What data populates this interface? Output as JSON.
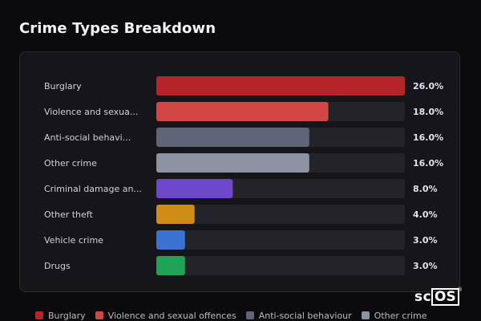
{
  "page": {
    "title": "Crime Types Breakdown"
  },
  "colors": {
    "background": "#0b0b0e",
    "panel": "#16161a",
    "track": "#232328",
    "label_text": "#cfd1d8",
    "value_text": "#e2e3e8"
  },
  "chart_data": {
    "type": "bar",
    "orientation": "horizontal",
    "categories": [
      "Burglary",
      "Violence and sexua...",
      "Anti-social behavi...",
      "Other crime",
      "Criminal damage an...",
      "Other theft",
      "Vehicle crime",
      "Drugs"
    ],
    "values": [
      26.0,
      18.0,
      16.0,
      16.0,
      8.0,
      4.0,
      3.0,
      3.0
    ],
    "value_labels": [
      "26.0%",
      "18.0%",
      "16.0%",
      "16.0%",
      "8.0%",
      "4.0%",
      "3.0%",
      "3.0%"
    ],
    "bar_colors": [
      "#b52428",
      "#d24646",
      "#5d6577",
      "#8c94a4",
      "#6d47cc",
      "#cf8c17",
      "#3a72d4",
      "#20a357"
    ],
    "xlim": [
      0,
      26.0
    ],
    "grid": false,
    "legend_position": "bottom"
  },
  "legend": [
    {
      "label": "Burglary",
      "color": "#b52428"
    },
    {
      "label": "Violence and sexual offences",
      "color": "#d24646"
    },
    {
      "label": "Anti-social behaviour",
      "color": "#5d6577"
    },
    {
      "label": "Other crime",
      "color": "#8c94a4"
    }
  ],
  "logo": {
    "text_sc": "sc",
    "text_os": "OS",
    "registered": "®"
  }
}
